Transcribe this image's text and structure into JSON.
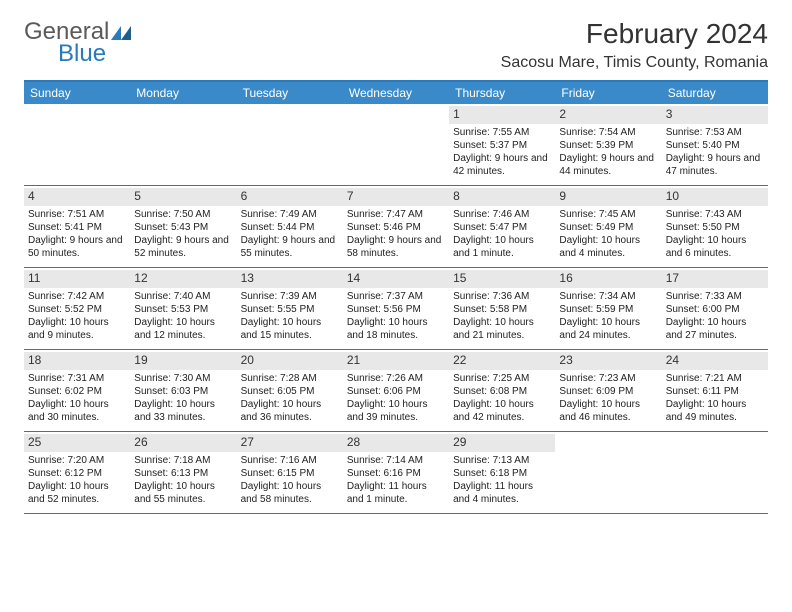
{
  "logo": {
    "text_general": "General",
    "text_blue": "Blue",
    "icon_color": "#2a7ab9"
  },
  "header": {
    "month_title": "February 2024",
    "location": "Sacosu Mare, Timis County, Romania"
  },
  "colors": {
    "header_bg": "#3a8ac9",
    "border": "#2a7ab9",
    "daynum_bg": "#e8e8e8",
    "text": "#222222"
  },
  "day_names": [
    "Sunday",
    "Monday",
    "Tuesday",
    "Wednesday",
    "Thursday",
    "Friday",
    "Saturday"
  ],
  "weeks": [
    [
      {
        "empty": true
      },
      {
        "empty": true
      },
      {
        "empty": true
      },
      {
        "empty": true
      },
      {
        "num": "1",
        "sunrise": "7:55 AM",
        "sunset": "5:37 PM",
        "daylight": "9 hours and 42 minutes."
      },
      {
        "num": "2",
        "sunrise": "7:54 AM",
        "sunset": "5:39 PM",
        "daylight": "9 hours and 44 minutes."
      },
      {
        "num": "3",
        "sunrise": "7:53 AM",
        "sunset": "5:40 PM",
        "daylight": "9 hours and 47 minutes."
      }
    ],
    [
      {
        "num": "4",
        "sunrise": "7:51 AM",
        "sunset": "5:41 PM",
        "daylight": "9 hours and 50 minutes."
      },
      {
        "num": "5",
        "sunrise": "7:50 AM",
        "sunset": "5:43 PM",
        "daylight": "9 hours and 52 minutes."
      },
      {
        "num": "6",
        "sunrise": "7:49 AM",
        "sunset": "5:44 PM",
        "daylight": "9 hours and 55 minutes."
      },
      {
        "num": "7",
        "sunrise": "7:47 AM",
        "sunset": "5:46 PM",
        "daylight": "9 hours and 58 minutes."
      },
      {
        "num": "8",
        "sunrise": "7:46 AM",
        "sunset": "5:47 PM",
        "daylight": "10 hours and 1 minute."
      },
      {
        "num": "9",
        "sunrise": "7:45 AM",
        "sunset": "5:49 PM",
        "daylight": "10 hours and 4 minutes."
      },
      {
        "num": "10",
        "sunrise": "7:43 AM",
        "sunset": "5:50 PM",
        "daylight": "10 hours and 6 minutes."
      }
    ],
    [
      {
        "num": "11",
        "sunrise": "7:42 AM",
        "sunset": "5:52 PM",
        "daylight": "10 hours and 9 minutes."
      },
      {
        "num": "12",
        "sunrise": "7:40 AM",
        "sunset": "5:53 PM",
        "daylight": "10 hours and 12 minutes."
      },
      {
        "num": "13",
        "sunrise": "7:39 AM",
        "sunset": "5:55 PM",
        "daylight": "10 hours and 15 minutes."
      },
      {
        "num": "14",
        "sunrise": "7:37 AM",
        "sunset": "5:56 PM",
        "daylight": "10 hours and 18 minutes."
      },
      {
        "num": "15",
        "sunrise": "7:36 AM",
        "sunset": "5:58 PM",
        "daylight": "10 hours and 21 minutes."
      },
      {
        "num": "16",
        "sunrise": "7:34 AM",
        "sunset": "5:59 PM",
        "daylight": "10 hours and 24 minutes."
      },
      {
        "num": "17",
        "sunrise": "7:33 AM",
        "sunset": "6:00 PM",
        "daylight": "10 hours and 27 minutes."
      }
    ],
    [
      {
        "num": "18",
        "sunrise": "7:31 AM",
        "sunset": "6:02 PM",
        "daylight": "10 hours and 30 minutes."
      },
      {
        "num": "19",
        "sunrise": "7:30 AM",
        "sunset": "6:03 PM",
        "daylight": "10 hours and 33 minutes."
      },
      {
        "num": "20",
        "sunrise": "7:28 AM",
        "sunset": "6:05 PM",
        "daylight": "10 hours and 36 minutes."
      },
      {
        "num": "21",
        "sunrise": "7:26 AM",
        "sunset": "6:06 PM",
        "daylight": "10 hours and 39 minutes."
      },
      {
        "num": "22",
        "sunrise": "7:25 AM",
        "sunset": "6:08 PM",
        "daylight": "10 hours and 42 minutes."
      },
      {
        "num": "23",
        "sunrise": "7:23 AM",
        "sunset": "6:09 PM",
        "daylight": "10 hours and 46 minutes."
      },
      {
        "num": "24",
        "sunrise": "7:21 AM",
        "sunset": "6:11 PM",
        "daylight": "10 hours and 49 minutes."
      }
    ],
    [
      {
        "num": "25",
        "sunrise": "7:20 AM",
        "sunset": "6:12 PM",
        "daylight": "10 hours and 52 minutes."
      },
      {
        "num": "26",
        "sunrise": "7:18 AM",
        "sunset": "6:13 PM",
        "daylight": "10 hours and 55 minutes."
      },
      {
        "num": "27",
        "sunrise": "7:16 AM",
        "sunset": "6:15 PM",
        "daylight": "10 hours and 58 minutes."
      },
      {
        "num": "28",
        "sunrise": "7:14 AM",
        "sunset": "6:16 PM",
        "daylight": "11 hours and 1 minute."
      },
      {
        "num": "29",
        "sunrise": "7:13 AM",
        "sunset": "6:18 PM",
        "daylight": "11 hours and 4 minutes."
      },
      {
        "empty": true
      },
      {
        "empty": true
      }
    ]
  ]
}
